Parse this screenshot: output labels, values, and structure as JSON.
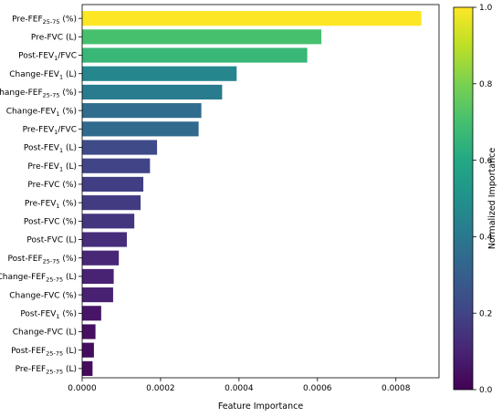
{
  "chart_data": {
    "type": "bar",
    "orientation": "horizontal",
    "xlabel": "Feature Importance",
    "xlim": [
      0,
      0.00091
    ],
    "xticks": [
      "0.0000",
      "0.0002",
      "0.0004",
      "0.0006",
      "0.0008"
    ],
    "xtick_values": [
      0,
      0.0002,
      0.0004,
      0.0006,
      0.0008
    ],
    "categories": [
      {
        "pre": "Pre-FEF",
        "sub": "25-75",
        "post": " (%)"
      },
      {
        "pre": "Pre-FVC (L)",
        "sub": "",
        "post": ""
      },
      {
        "pre": "Post-FEV",
        "sub": "1",
        "post": "/FVC"
      },
      {
        "pre": "Change-FEV",
        "sub": "1",
        "post": " (L)"
      },
      {
        "pre": "Change-FEF",
        "sub": "25-75",
        "post": " (%)"
      },
      {
        "pre": "Change-FEV",
        "sub": "1",
        "post": " (%)"
      },
      {
        "pre": "Pre-FEV",
        "sub": "1",
        "post": "/FVC"
      },
      {
        "pre": "Post-FEV",
        "sub": "1",
        "post": " (L)"
      },
      {
        "pre": "Pre-FEV",
        "sub": "1",
        "post": " (L)"
      },
      {
        "pre": "Pre-FVC (%)",
        "sub": "",
        "post": ""
      },
      {
        "pre": "Pre-FEV",
        "sub": "1",
        "post": " (%)"
      },
      {
        "pre": "Post-FVC (%)",
        "sub": "",
        "post": ""
      },
      {
        "pre": "Post-FVC (L)",
        "sub": "",
        "post": ""
      },
      {
        "pre": "Post-FEF",
        "sub": "25-75",
        "post": " (%)"
      },
      {
        "pre": "Change-FEF",
        "sub": "25-75",
        "post": " (L)"
      },
      {
        "pre": "Change-FVC (%)",
        "sub": "",
        "post": ""
      },
      {
        "pre": "Post-FEV",
        "sub": "1",
        "post": " (%)"
      },
      {
        "pre": "Change-FVC (L)",
        "sub": "",
        "post": ""
      },
      {
        "pre": "Post-FEF",
        "sub": "25-75",
        "post": " (L)"
      },
      {
        "pre": "Pre-FEF",
        "sub": "25-75",
        "post": " (L)"
      }
    ],
    "values": [
      0.000865,
      0.00061,
      0.000574,
      0.000394,
      0.000357,
      0.000304,
      0.000297,
      0.000191,
      0.000173,
      0.000156,
      0.000149,
      0.000133,
      0.000114,
      9.35e-05,
      8.05e-05,
      7.9e-05,
      4.85e-05,
      3.4e-05,
      3e-05,
      2.65e-05
    ],
    "colorbar": {
      "label": "Normalized Importance",
      "ticks": [
        "0.0",
        "0.2",
        "0.4",
        "0.6",
        "0.8",
        "1.0"
      ],
      "tick_values": [
        0,
        0.2,
        0.4,
        0.6,
        0.8,
        1.0
      ],
      "colormap": "viridis"
    }
  }
}
